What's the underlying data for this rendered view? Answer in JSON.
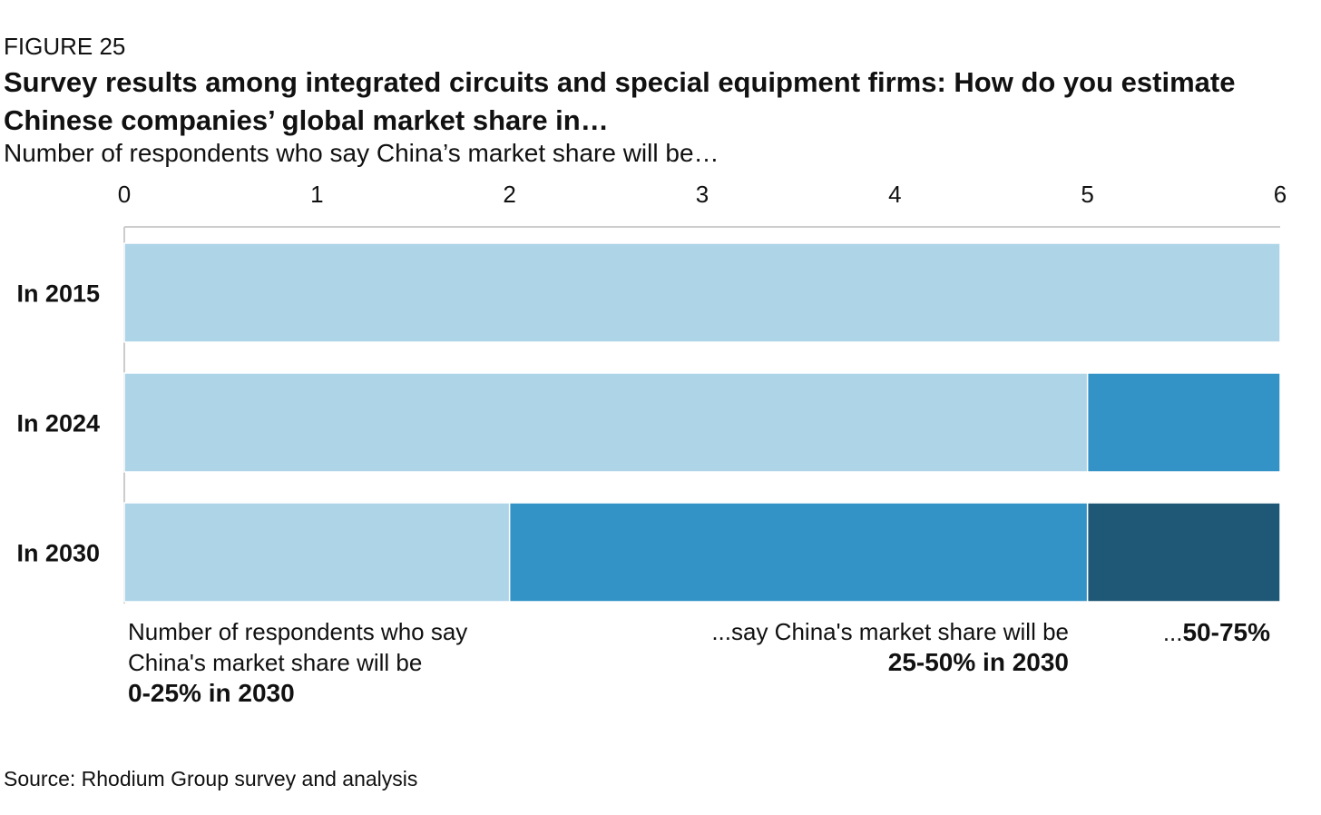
{
  "figure_label": "FIGURE 25",
  "title": "Survey results among integrated circuits and special equipment firms: How do you estimate Chinese companies’ global market share in…",
  "subtitle": "Number of respondents who say China’s market share will be…",
  "source": "Source: Rhodium Group survey and analysis",
  "annotations": {
    "a1_line1": "Number of respondents who say",
    "a1_line2": "China's market share will be",
    "a1_bold": "0-25% in 2030",
    "a2_line1": "...say China's market share will be",
    "a2_bold": "25-50% in 2030",
    "a3_prefix": "...",
    "a3_bold": "50-75%"
  },
  "colors": {
    "share_0_25": "#aed4e8",
    "share_25_50": "#3493c6",
    "share_50_75": "#1f5876",
    "axis": "#cccccc",
    "text": "#111111"
  },
  "chart_data": {
    "type": "bar",
    "orientation": "horizontal",
    "stacked": true,
    "title": "Survey results among integrated circuits and special equipment firms: How do you estimate Chinese companies’ global market share in…",
    "subtitle": "Number of respondents who say China’s market share will be…",
    "xlabel": "",
    "ylabel": "",
    "xlim": [
      0,
      6
    ],
    "xticks": [
      0,
      1,
      2,
      3,
      4,
      5,
      6
    ],
    "xaxis_position": "top",
    "grid": false,
    "categories": [
      "In 2015",
      "In 2024",
      "In 2030"
    ],
    "series": [
      {
        "name": "0-25%",
        "color": "#aed4e8",
        "values": [
          6,
          5,
          2
        ]
      },
      {
        "name": "25-50%",
        "color": "#3493c6",
        "values": [
          0,
          1,
          3
        ]
      },
      {
        "name": "50-75%",
        "color": "#1f5876",
        "values": [
          0,
          0,
          1
        ]
      }
    ]
  }
}
